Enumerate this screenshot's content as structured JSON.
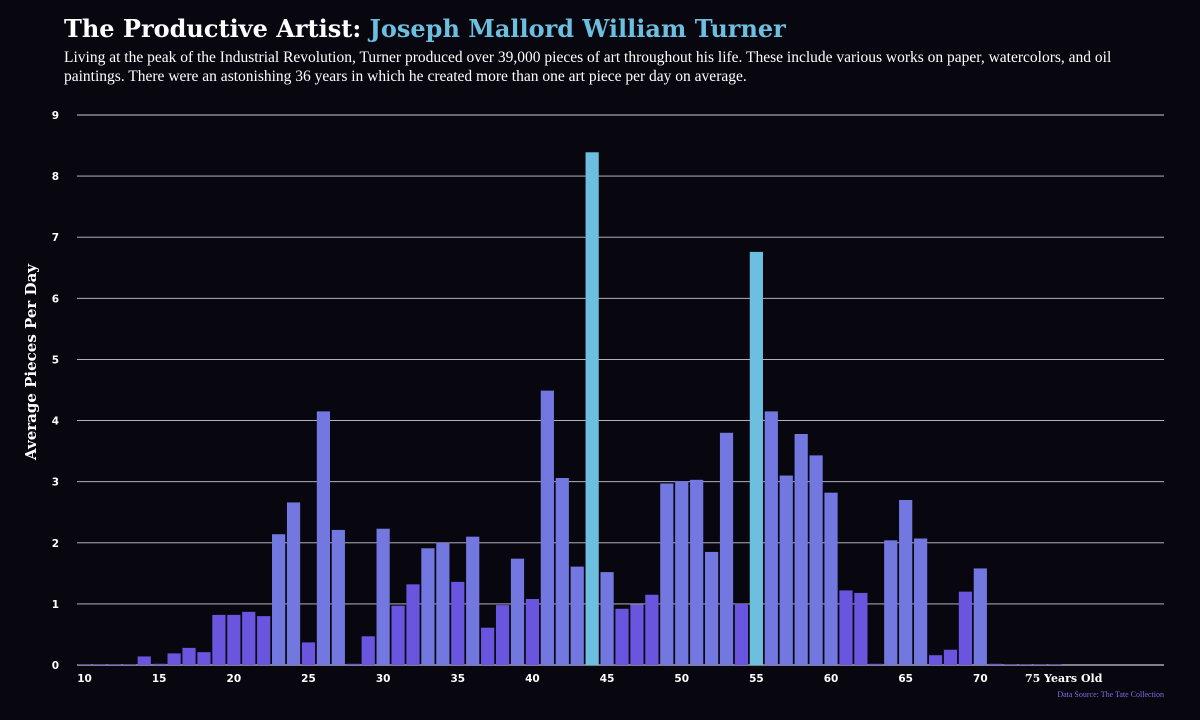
{
  "header": {
    "title_prefix": "The Productive Artist: ",
    "title_highlight": "Joseph Mallord William Turner",
    "subtitle": "Living at the peak of the Industrial Revolution, Turner produced over 39,000 pieces of art throughout his life. These include various works on paper, watercolors, and oil paintings. There were an astonishing 36 years in which he created more than one art piece per day on average."
  },
  "footer": {
    "source": "Data Source: The Tate Collection"
  },
  "colors": {
    "background": "#08070f",
    "bar_low": "#6a55de",
    "bar_mid": "#7278df",
    "bar_high": "#6dbfe0",
    "grid": "#c8c8d8",
    "highlight_text": "#6dbfe0"
  },
  "chart_data": {
    "type": "bar",
    "title": "The Productive Artist: Joseph Mallord William Turner",
    "xlabel": "",
    "ylabel": "Average Pieces Per Day",
    "ylim": [
      0,
      9
    ],
    "yticks": [
      0,
      1,
      2,
      3,
      4,
      5,
      6,
      7,
      8,
      9
    ],
    "xticks": [
      {
        "age": 10,
        "label": "10"
      },
      {
        "age": 15,
        "label": "15"
      },
      {
        "age": 20,
        "label": "20"
      },
      {
        "age": 25,
        "label": "25"
      },
      {
        "age": 30,
        "label": "30"
      },
      {
        "age": 35,
        "label": "35"
      },
      {
        "age": 40,
        "label": "40"
      },
      {
        "age": 45,
        "label": "45"
      },
      {
        "age": 50,
        "label": "50"
      },
      {
        "age": 55,
        "label": "55"
      },
      {
        "age": 60,
        "label": "60"
      },
      {
        "age": 65,
        "label": "65"
      },
      {
        "age": 70,
        "label": "70"
      },
      {
        "age": 75,
        "label": "75 Years Old"
      }
    ],
    "x": [
      10,
      11,
      12,
      13,
      14,
      15,
      16,
      17,
      18,
      19,
      20,
      21,
      22,
      23,
      24,
      25,
      26,
      27,
      28,
      29,
      30,
      31,
      32,
      33,
      34,
      35,
      36,
      37,
      38,
      39,
      40,
      41,
      42,
      43,
      44,
      45,
      46,
      47,
      48,
      49,
      50,
      51,
      52,
      53,
      54,
      55,
      56,
      57,
      58,
      59,
      60,
      61,
      62,
      63,
      64,
      65,
      66,
      67,
      68,
      69,
      70,
      71,
      72,
      73,
      74,
      75
    ],
    "values": [
      0,
      0,
      0.01,
      0.01,
      0.14,
      0.02,
      0.19,
      0.28,
      0.21,
      0.82,
      0.82,
      0.87,
      0.8,
      2.14,
      2.66,
      0.37,
      4.15,
      2.21,
      0.02,
      0.47,
      2.23,
      0.97,
      1.32,
      1.91,
      2.0,
      1.36,
      2.1,
      0.61,
      0.98,
      1.74,
      1.08,
      4.49,
      3.06,
      1.61,
      8.39,
      1.52,
      0.92,
      0.99,
      1.15,
      2.97,
      3.01,
      3.03,
      1.85,
      3.8,
      1.0,
      6.76,
      4.15,
      3.1,
      3.78,
      3.43,
      2.82,
      1.22,
      1.18,
      0.02,
      2.04,
      2.7,
      2.07,
      0.16,
      0.25,
      1.2,
      1.58,
      0.02,
      0,
      0,
      0,
      0
    ],
    "grid": true,
    "legend": "none"
  }
}
